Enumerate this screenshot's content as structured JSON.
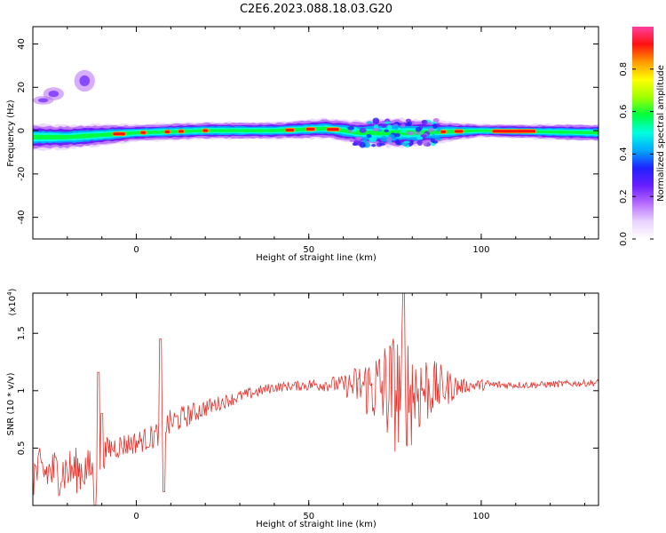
{
  "figure": {
    "title": "C2E6.2023.088.18.03.G20"
  },
  "colors": {
    "snr_line": "#e8302a",
    "spectrogram_background": "#ffffff",
    "colormap": [
      "#ffffff",
      "#e9d2ff",
      "#b76cff",
      "#6a1fff",
      "#2020ff",
      "#00a8ff",
      "#00ffe0",
      "#00ff40",
      "#a0ff00",
      "#ffff00",
      "#ff9a00",
      "#ff1010",
      "#ff40a0"
    ]
  },
  "chart_data": [
    {
      "type": "heatmap",
      "name": "spectrogram",
      "xlabel": "Height of straight line (km)",
      "ylabel": "Frequency (Hz)",
      "xlim": [
        -30,
        134
      ],
      "ylim": [
        -50,
        48
      ],
      "xticks": [
        0,
        50,
        100
      ],
      "yticks": [
        -40,
        -20,
        0,
        20,
        40
      ],
      "grid": false,
      "colorbar": {
        "label": "Normalized spectral amplitude",
        "range": [
          0,
          1
        ],
        "ticks": [
          0.0,
          0.2,
          0.4,
          0.6,
          0.8
        ]
      },
      "band": {
        "center_hz": [
          {
            "x": -30,
            "y": -3
          },
          {
            "x": -20,
            "y": -3
          },
          {
            "x": -10,
            "y": -2
          },
          {
            "x": 0,
            "y": -1
          },
          {
            "x": 20,
            "y": 0
          },
          {
            "x": 40,
            "y": 0
          },
          {
            "x": 55,
            "y": 1
          },
          {
            "x": 65,
            "y": -1
          },
          {
            "x": 80,
            "y": -1
          },
          {
            "x": 100,
            "y": 0
          },
          {
            "x": 134,
            "y": -1
          }
        ],
        "half_width_hz": [
          {
            "x": -30,
            "y": 6
          },
          {
            "x": -10,
            "y": 5
          },
          {
            "x": 0,
            "y": 4
          },
          {
            "x": 40,
            "y": 4
          },
          {
            "x": 62,
            "y": 5
          },
          {
            "x": 75,
            "y": 7
          },
          {
            "x": 88,
            "y": 5
          },
          {
            "x": 100,
            "y": 3
          },
          {
            "x": 134,
            "y": 4
          }
        ],
        "hot_segments_km": [
          [
            -7,
            -3
          ],
          [
            1,
            3
          ],
          [
            8,
            10
          ],
          [
            12,
            14
          ],
          [
            19,
            21
          ],
          [
            43,
            46
          ],
          [
            49,
            52
          ],
          [
            55,
            59
          ],
          [
            88,
            90
          ],
          [
            92,
            95
          ],
          [
            103,
            116
          ]
        ],
        "faint_blobs": [
          {
            "x": -15,
            "y": 23,
            "w": 3,
            "h": 5
          },
          {
            "x": -24,
            "y": 17,
            "w": 3,
            "h": 3
          },
          {
            "x": -27,
            "y": 14,
            "w": 3,
            "h": 2
          }
        ]
      }
    },
    {
      "type": "line",
      "name": "snr",
      "xlabel": "Height of straight line (km)",
      "ylabel": "SNR (10 * v/v)",
      "exponent_label": "(x10",
      "exponent_power": "4",
      "exponent_close": ")",
      "xlim": [
        -30,
        134
      ],
      "ylim": [
        0,
        1.85
      ],
      "xticks": [
        0,
        50,
        100
      ],
      "yticks": [
        0.5,
        1.0,
        1.5
      ],
      "grid": false,
      "trend": [
        {
          "x": -30,
          "y": 0.28
        },
        {
          "x": -20,
          "y": 0.3
        },
        {
          "x": -12,
          "y": 0.32
        },
        {
          "x": -8,
          "y": 0.5
        },
        {
          "x": 0,
          "y": 0.55
        },
        {
          "x": 5,
          "y": 0.6
        },
        {
          "x": 10,
          "y": 0.72
        },
        {
          "x": 20,
          "y": 0.85
        },
        {
          "x": 30,
          "y": 0.95
        },
        {
          "x": 40,
          "y": 1.03
        },
        {
          "x": 55,
          "y": 1.06
        },
        {
          "x": 65,
          "y": 1.04
        },
        {
          "x": 75,
          "y": 1.0
        },
        {
          "x": 85,
          "y": 1.02
        },
        {
          "x": 100,
          "y": 1.05
        },
        {
          "x": 115,
          "y": 1.05
        },
        {
          "x": 134,
          "y": 1.07
        }
      ],
      "noise_amplitude": [
        {
          "x": -30,
          "y": 0.22
        },
        {
          "x": -15,
          "y": 0.2
        },
        {
          "x": -10,
          "y": 0.12
        },
        {
          "x": 0,
          "y": 0.1
        },
        {
          "x": 10,
          "y": 0.12
        },
        {
          "x": 25,
          "y": 0.06
        },
        {
          "x": 45,
          "y": 0.04
        },
        {
          "x": 60,
          "y": 0.08
        },
        {
          "x": 68,
          "y": 0.3
        },
        {
          "x": 75,
          "y": 0.55
        },
        {
          "x": 80,
          "y": 0.5
        },
        {
          "x": 86,
          "y": 0.25
        },
        {
          "x": 95,
          "y": 0.06
        },
        {
          "x": 110,
          "y": 0.03
        },
        {
          "x": 134,
          "y": 0.03
        }
      ],
      "spikes": [
        {
          "x": -11,
          "y": 1.16
        },
        {
          "x": -10,
          "y": 0.8
        },
        {
          "x": 7,
          "y": 1.45
        },
        {
          "x": 8,
          "y": 0.12
        },
        {
          "x": -12,
          "y": 0.0
        }
      ],
      "peak_value": 1.85
    }
  ]
}
